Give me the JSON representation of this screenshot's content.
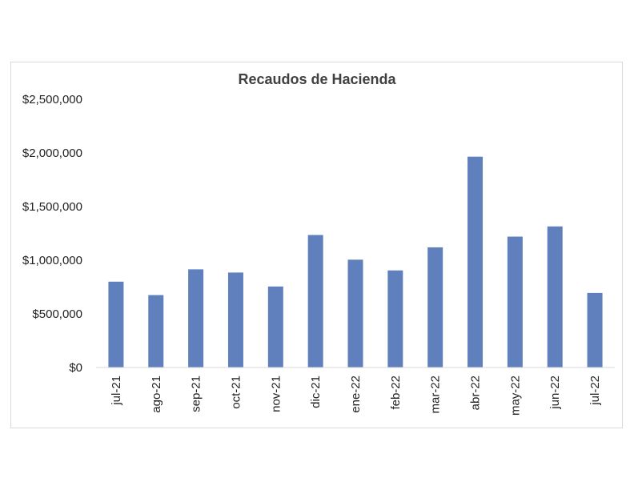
{
  "chart_data": {
    "type": "bar",
    "title": "Recaudos de Hacienda",
    "xlabel": "",
    "ylabel": "",
    "categories": [
      "jul-21",
      "ago-21",
      "sep-21",
      "oct-21",
      "nov-21",
      "dic-21",
      "ene-22",
      "feb-22",
      "mar-22",
      "abr-22",
      "may-22",
      "jun-22",
      "jul-22"
    ],
    "values": [
      800000,
      675000,
      915000,
      885000,
      755000,
      1235000,
      1005000,
      905000,
      1120000,
      1965000,
      1220000,
      1315000,
      695000
    ],
    "ylim": [
      0,
      2500000
    ],
    "yticks": [
      0,
      500000,
      1000000,
      1500000,
      2000000,
      2500000
    ],
    "ytick_labels": [
      "$0",
      "$500,000",
      "$1,000,000",
      "$1,500,000",
      "$2,000,000",
      "$2,500,000"
    ],
    "grid": false,
    "legend": "none",
    "colors": {
      "bar": "#6080BD",
      "axis": "#d9d9d9",
      "text": "#222222",
      "title": "#404040"
    }
  }
}
